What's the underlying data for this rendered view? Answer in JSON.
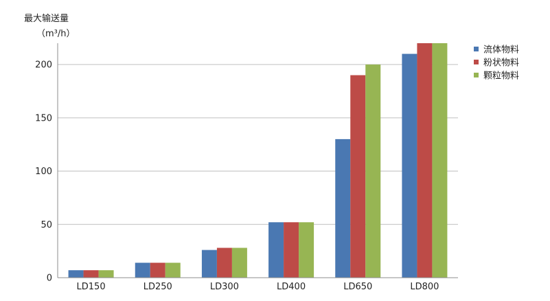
{
  "chart_data": {
    "type": "bar",
    "ylabel": "最大输送量",
    "yunit": "（m³/h）",
    "categories": [
      "LD150",
      "LD250",
      "LD300",
      "LD400",
      "LD650",
      "LD800"
    ],
    "series": [
      {
        "name": "流体物料",
        "color": "#4a78b2",
        "values": [
          7,
          14,
          26,
          52,
          130,
          210
        ]
      },
      {
        "name": "粉状物料",
        "color": "#bd4b47",
        "values": [
          7,
          14,
          28,
          52,
          190,
          220
        ]
      },
      {
        "name": "颗粒物料",
        "color": "#97b553",
        "values": [
          7,
          14,
          28,
          52,
          200,
          220
        ]
      }
    ],
    "ylim": [
      0,
      220
    ],
    "yticks": [
      0,
      50,
      100,
      150,
      200
    ],
    "grid": true,
    "legend": "top-right"
  }
}
